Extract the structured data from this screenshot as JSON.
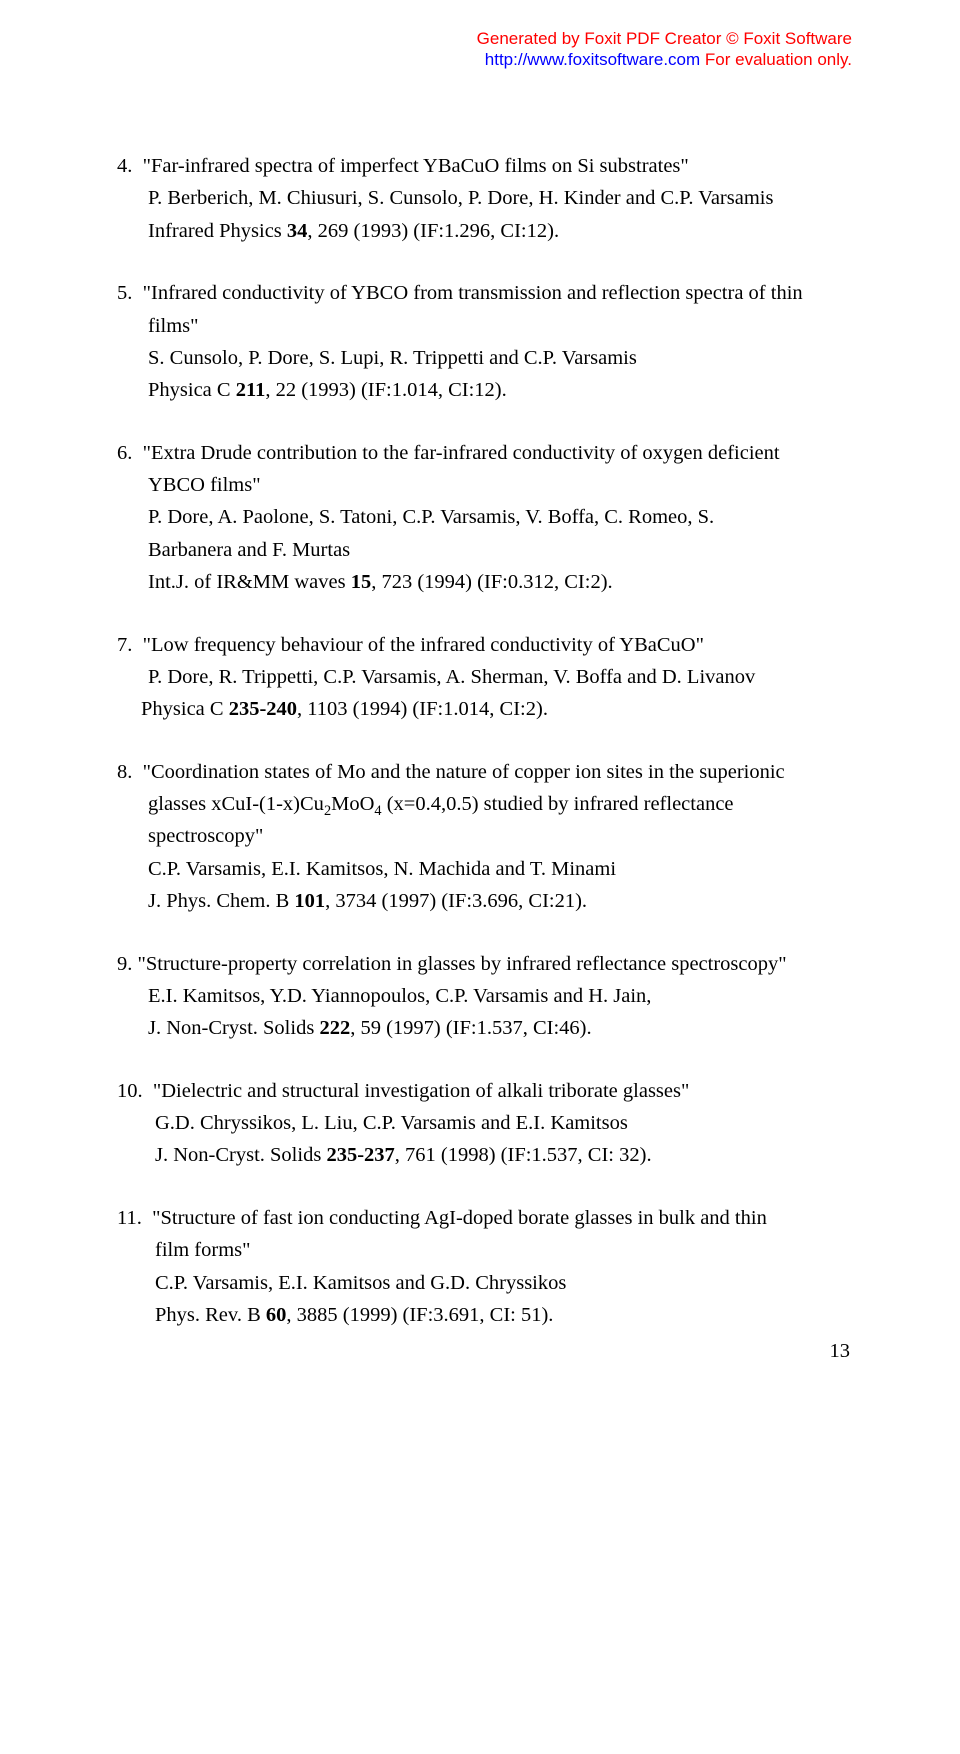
{
  "watermark": {
    "line1_pre": "Generated by Foxit PDF Creator ",
    "line1_post": " Foxit Software",
    "copyright": "©",
    "line2_link": "http://www.foxitsoftware.com",
    "line2_post": "   For evaluation only."
  },
  "entries": {
    "e4": {
      "num": "4.",
      "title_a": "\"Far-infrared spectra of imperfect YBaCuO films on Si substrates\"",
      "authors": "P. Berberich, M. Chiusuri, S. Cunsolo, P. Dore, H. Kinder and C.P. Varsamis",
      "journal_a": "Infrared Physics ",
      "vol": "34",
      "journal_b": ", 269 (1993) (IF:1.296, CI:12)."
    },
    "e5": {
      "num": "5.",
      "title_a": "\"Infrared conductivity of YBCO from transmission and reflection spectra of thin",
      "title_b": "films\"",
      "authors": "S. Cunsolo, P. Dore, S. Lupi, R. Trippetti and C.P. Varsamis",
      "journal_a": "Physica C ",
      "vol": "211",
      "journal_b": ", 22 (1993) (IF:1.014, CI:12)."
    },
    "e6": {
      "num": "6.",
      "title_a": "\"Extra Drude contribution to the far-infrared conductivity of oxygen deficient",
      "title_b": "YBCO films\"",
      "authors_a": "P. Dore, A. Paolone, S. Tatoni, C.P. Varsamis, V. Boffa, C. Romeo, S.",
      "authors_b": "Barbanera and F. Murtas",
      "journal_a": "Int.J. of IR&MM waves ",
      "vol": "15",
      "journal_b": ", 723 (1994) (IF:0.312, CI:2)."
    },
    "e7": {
      "num": "7.",
      "title": "\"Low frequency behaviour of the infrared conductivity of YBaCuO\"",
      "authors": "P. Dore, R. Trippetti, C.P. Varsamis, A. Sherman, V. Boffa and D. Livanov",
      "journal_a": "Physica C ",
      "vol": "235-240",
      "journal_b": ", 1103 (1994) (IF:1.014, CI:2)."
    },
    "e8": {
      "num": "8.",
      "title_a": "\"Coordination states of Mo and the nature of copper ion sites in the superionic",
      "title_b_pre": "glasses xCuI-(1-x)Cu",
      "title_b_mid": "MoO",
      "title_b_post": " (x=0.4,0.5) studied by infrared reflectance",
      "title_c": "spectroscopy\"",
      "authors": "C.P. Varsamis, E.I. Kamitsos, N. Machida and T. Minami",
      "journal_a": "J. Phys. Chem. B ",
      "vol": "101",
      "journal_b": ", 3734 (1997) (IF:3.696, CI:21)."
    },
    "e9": {
      "num": "9.",
      "title": "\"Structure-property correlation in glasses by infrared reflectance spectroscopy\"",
      "authors": "E.I. Kamitsos, Y.D. Yiannopoulos, C.P. Varsamis and H. Jain,",
      "journal_a": "J. Non-Cryst. Solids ",
      "vol": "222",
      "journal_b": ", 59 (1997) (IF:1.537, CI:46)."
    },
    "e10": {
      "num": "10.",
      "title": "\"Dielectric and structural investigation of alkali triborate glasses\"",
      "authors": "G.D. Chryssikos, L. Liu, C.P. Varsamis and E.I. Kamitsos",
      "journal_a": "J. Non-Cryst. Solids ",
      "vol": "235-237",
      "journal_b": ", 761 (1998) (IF:1.537, CI: 32)."
    },
    "e11": {
      "num": "11.",
      "title_a": "\"Structure of fast ion conducting AgI-doped borate glasses in bulk and thin",
      "title_b": "film forms\"",
      "authors": "C.P. Varsamis, E.I. Kamitsos and G.D. Chryssikos",
      "journal_a": "Phys. Rev. B ",
      "vol": "60",
      "journal_b": ", 3885 (1999) (IF:3.691, CI: 51)."
    }
  },
  "page_number": "13"
}
